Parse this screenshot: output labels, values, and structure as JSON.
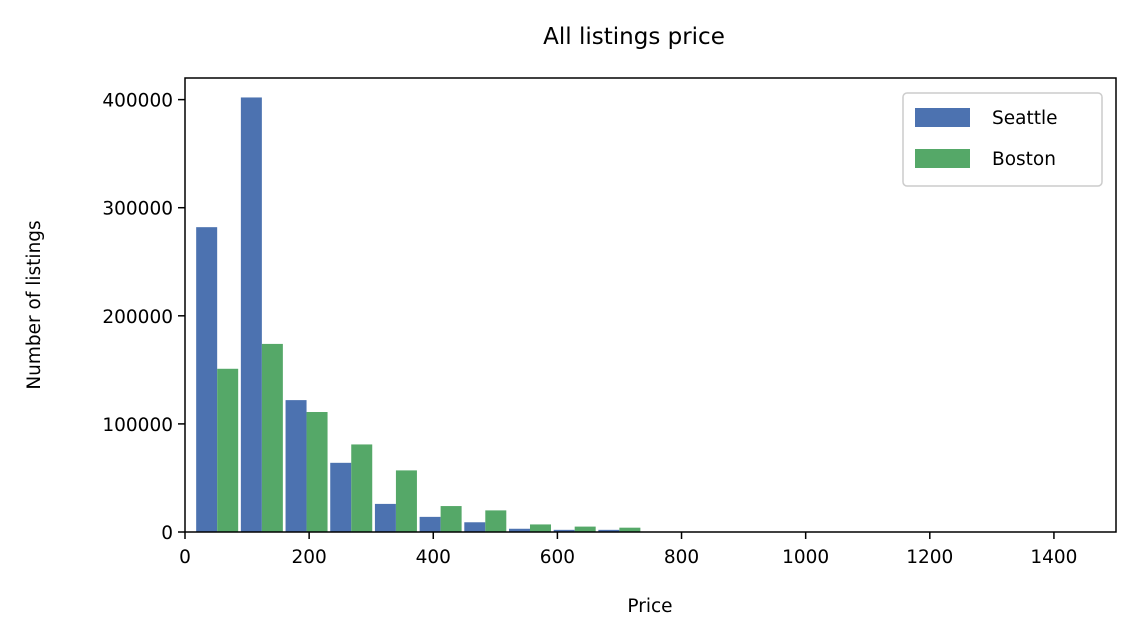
{
  "chart_data": {
    "type": "bar",
    "title": "All listings price",
    "xlabel": "Price",
    "ylabel": "Number of listings",
    "xlim": [
      0,
      1500
    ],
    "ylim": [
      0,
      420000
    ],
    "xticks": [
      "0",
      "200",
      "400",
      "600",
      "800",
      "1000",
      "1200",
      "1400"
    ],
    "yticks": [
      "0",
      "100000",
      "200000",
      "300000",
      "400000"
    ],
    "grid": false,
    "legend_position": "top-right",
    "bin_width": 72,
    "bin_starts": [
      18,
      90,
      162,
      234,
      306,
      378,
      450,
      522,
      594,
      666
    ],
    "series": [
      {
        "name": "Seattle",
        "color": "#4c72b0",
        "values": [
          282000,
          402000,
          122000,
          64000,
          26000,
          14000,
          9000,
          3000,
          2000,
          2000
        ]
      },
      {
        "name": "Boston",
        "color": "#55a868",
        "values": [
          151000,
          174000,
          111000,
          81000,
          57000,
          24000,
          20000,
          7000,
          5000,
          4000
        ]
      }
    ]
  }
}
